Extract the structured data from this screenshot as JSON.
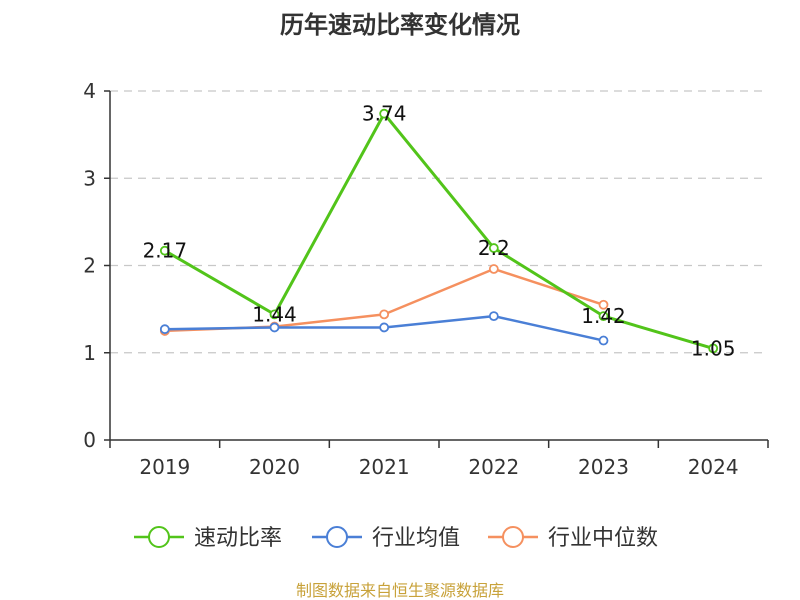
{
  "chart_data": {
    "type": "line",
    "title": "历年速动比率变化情况",
    "categories": [
      "2019",
      "2020",
      "2021",
      "2022",
      "2023",
      "2024"
    ],
    "ylim": [
      0,
      4
    ],
    "yticks": [
      0,
      1,
      2,
      3,
      4
    ],
    "grid": true,
    "legend_position": "bottom",
    "series": [
      {
        "name": "速动比率",
        "color": "#52c41a",
        "values": [
          2.17,
          1.44,
          3.74,
          2.2,
          1.42,
          1.05
        ],
        "labels": [
          "2.17",
          "1.44",
          "3.74",
          "2.2",
          "1.42",
          "1.05"
        ]
      },
      {
        "name": "行业均值",
        "color": "#4a7fd6",
        "values": [
          1.27,
          1.29,
          1.29,
          1.42,
          1.14,
          null
        ]
      },
      {
        "name": "行业中位数",
        "color": "#f5905f",
        "values": [
          1.25,
          1.3,
          1.44,
          1.96,
          1.55,
          null
        ]
      }
    ]
  },
  "source": "制图数据来自恒生聚源数据库"
}
